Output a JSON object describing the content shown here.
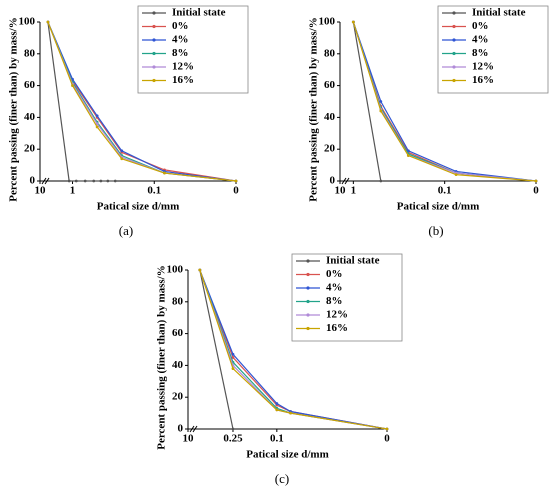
{
  "chart_data": [
    {
      "type": "line",
      "caption": "(a)",
      "x_label": "Patical size d/mm",
      "y_label": "Percent passing (finer than) by mass/%",
      "xscale": "log",
      "x_break": true,
      "legend": "upper right",
      "xlim": [
        2.5,
        0.01
      ],
      "xticks": [
        10,
        1,
        0.1,
        {
          "value": 0.01,
          "label": "0"
        }
      ],
      "ylim": [
        0,
        100
      ],
      "yticks": [
        0,
        20,
        40,
        60,
        80,
        100
      ],
      "series": [
        {
          "name": "Initial state",
          "color": "#555555",
          "x": [
            2,
            1.1,
            0.9,
            0.7,
            0.55,
            0.45,
            0.37,
            0.3
          ],
          "values": [
            100,
            0,
            0,
            0,
            0,
            0,
            0,
            0
          ]
        },
        {
          "name": "0%",
          "color": "#d9534f",
          "x": [
            2,
            1,
            0.5,
            0.25,
            0.075,
            0.01
          ],
          "values": [
            100,
            63,
            40,
            18,
            7,
            0
          ]
        },
        {
          "name": "4%",
          "color": "#2f55d4",
          "x": [
            2,
            1,
            0.5,
            0.25,
            0.075,
            0.01
          ],
          "values": [
            100,
            64,
            41,
            19,
            6,
            0
          ]
        },
        {
          "name": "8%",
          "color": "#22a38a",
          "x": [
            2,
            1,
            0.5,
            0.25,
            0.075,
            0.01
          ],
          "values": [
            100,
            62,
            37,
            16,
            5,
            0
          ]
        },
        {
          "name": "12%",
          "color": "#b08ad8",
          "x": [
            2,
            1,
            0.5,
            0.25,
            0.075,
            0.01
          ],
          "values": [
            100,
            61,
            36,
            15,
            5,
            0
          ]
        },
        {
          "name": "16%",
          "color": "#c8a400",
          "x": [
            2,
            1,
            0.5,
            0.25,
            0.075,
            0.01
          ],
          "values": [
            100,
            60,
            34,
            14,
            5,
            0
          ]
        }
      ]
    },
    {
      "type": "line",
      "caption": "(b)",
      "x_label": "Patical size d/mm",
      "y_label": "Percent passing (finer than) by mass/%",
      "xscale": "log",
      "x_break": true,
      "legend": "upper right",
      "xlim": [
        1.4,
        0.01
      ],
      "xticks": [
        10,
        1,
        0.1,
        {
          "value": 0.01,
          "label": "0"
        }
      ],
      "ylim": [
        0,
        100
      ],
      "yticks": [
        0,
        20,
        40,
        60,
        80,
        100
      ],
      "series": [
        {
          "name": "Initial state",
          "color": "#555555",
          "x": [
            1,
            0.5
          ],
          "values": [
            100,
            0
          ]
        },
        {
          "name": "0%",
          "color": "#d9534f",
          "x": [
            1,
            0.5,
            0.25,
            0.075,
            0.01
          ],
          "values": [
            100,
            47,
            18,
            5,
            0
          ]
        },
        {
          "name": "4%",
          "color": "#2f55d4",
          "x": [
            1,
            0.5,
            0.25,
            0.075,
            0.01
          ],
          "values": [
            100,
            50,
            19,
            6,
            0
          ]
        },
        {
          "name": "8%",
          "color": "#22a38a",
          "x": [
            1,
            0.5,
            0.25,
            0.075,
            0.01
          ],
          "values": [
            100,
            46,
            17,
            5,
            0
          ]
        },
        {
          "name": "12%",
          "color": "#b08ad8",
          "x": [
            1,
            0.5,
            0.25,
            0.075,
            0.01
          ],
          "values": [
            100,
            45,
            16,
            5,
            0
          ]
        },
        {
          "name": "16%",
          "color": "#c8a400",
          "x": [
            1,
            0.5,
            0.25,
            0.075,
            0.01
          ],
          "values": [
            100,
            44,
            16,
            4,
            0
          ]
        }
      ]
    },
    {
      "type": "line",
      "caption": "(c)",
      "x_label": "Patical size d/mm",
      "y_label": "Percent passing (finer than) by mass/%",
      "xscale": "log",
      "x_break": true,
      "legend": "upper right",
      "xlim": [
        0.64,
        0.01
      ],
      "xticks": [
        10,
        0.25,
        0.1,
        {
          "value": 0.01,
          "label": "0"
        }
      ],
      "ylim": [
        0,
        100
      ],
      "yticks": [
        0,
        20,
        40,
        60,
        80,
        100
      ],
      "series": [
        {
          "name": "Initial state",
          "color": "#555555",
          "x": [
            0.5,
            0.25
          ],
          "values": [
            100,
            0
          ]
        },
        {
          "name": "0%",
          "color": "#d9534f",
          "x": [
            0.5,
            0.25,
            0.1,
            0.075,
            0.01
          ],
          "values": [
            100,
            45,
            15,
            11,
            0
          ]
        },
        {
          "name": "4%",
          "color": "#2f55d4",
          "x": [
            0.5,
            0.25,
            0.1,
            0.075,
            0.01
          ],
          "values": [
            100,
            47,
            16,
            11,
            0
          ]
        },
        {
          "name": "8%",
          "color": "#22a38a",
          "x": [
            0.5,
            0.25,
            0.1,
            0.075,
            0.01
          ],
          "values": [
            100,
            42,
            13,
            10,
            0
          ]
        },
        {
          "name": "12%",
          "color": "#b08ad8",
          "x": [
            0.5,
            0.25,
            0.1,
            0.075,
            0.01
          ],
          "values": [
            100,
            40,
            12,
            10,
            0
          ]
        },
        {
          "name": "16%",
          "color": "#c8a400",
          "x": [
            0.5,
            0.25,
            0.1,
            0.075,
            0.01
          ],
          "values": [
            100,
            38,
            12,
            10,
            0
          ]
        }
      ]
    }
  ]
}
